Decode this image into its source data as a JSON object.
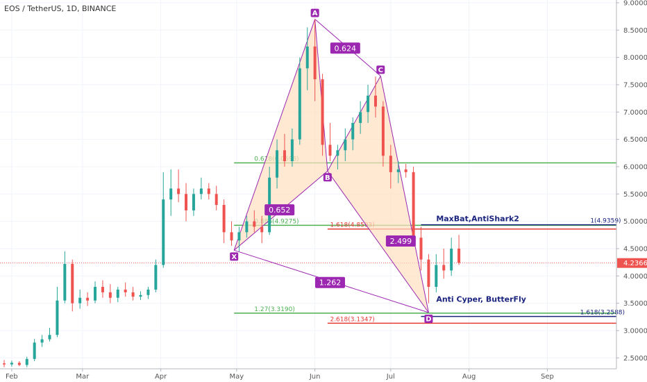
{
  "chart_data": {
    "type": "candlestick",
    "title": "EOS / TetherUS, 1D, BINANCE",
    "ylim": [
      2.3,
      9.0
    ],
    "xlim": [
      "2019-01-29",
      "2019-09-30"
    ],
    "x_ticks": [
      {
        "label": "Feb",
        "date": "2019-02-01"
      },
      {
        "label": "Mar",
        "date": "2019-03-01"
      },
      {
        "label": "Apr",
        "date": "2019-04-01"
      },
      {
        "label": "May",
        "date": "2019-05-01"
      },
      {
        "label": "Jun",
        "date": "2019-06-01"
      },
      {
        "label": "Jul",
        "date": "2019-07-01"
      },
      {
        "label": "Aug",
        "date": "2019-08-01"
      },
      {
        "label": "Sep",
        "date": "2019-09-01"
      }
    ],
    "y_ticks": [
      "2.5000",
      "3.0000",
      "3.5000",
      "4.0000",
      "4.5000",
      "5.0000",
      "5.5000",
      "6.0000",
      "6.5000",
      "7.0000",
      "7.5000",
      "8.0000",
      "8.5000",
      "9.0000"
    ],
    "last_price": {
      "label": "4.2366",
      "value": 4.2366,
      "color": "#ef5350"
    },
    "colors": {
      "up": "#26a69a",
      "down": "#ef5350",
      "pattern": "#9c27b0",
      "fill": "#ffe0c0",
      "fib_green": "#4caf50",
      "fib_red": "#e53935",
      "fib_navy": "#1a237e"
    },
    "candles": [
      {
        "d": "2019-01-29",
        "o": 2.4,
        "h": 2.46,
        "l": 2.33,
        "c": 2.38
      },
      {
        "d": "2019-02-01",
        "o": 2.38,
        "h": 2.45,
        "l": 2.34,
        "c": 2.41
      },
      {
        "d": "2019-02-04",
        "o": 2.41,
        "h": 2.44,
        "l": 2.35,
        "c": 2.37
      },
      {
        "d": "2019-02-07",
        "o": 2.37,
        "h": 2.52,
        "l": 2.33,
        "c": 2.48
      },
      {
        "d": "2019-02-10",
        "o": 2.48,
        "h": 2.85,
        "l": 2.44,
        "c": 2.78
      },
      {
        "d": "2019-02-13",
        "o": 2.78,
        "h": 2.92,
        "l": 2.7,
        "c": 2.84
      },
      {
        "d": "2019-02-16",
        "o": 2.84,
        "h": 3.05,
        "l": 2.8,
        "c": 2.92
      },
      {
        "d": "2019-02-19",
        "o": 2.92,
        "h": 3.8,
        "l": 2.88,
        "c": 3.55
      },
      {
        "d": "2019-02-22",
        "o": 3.55,
        "h": 4.45,
        "l": 3.5,
        "c": 4.22
      },
      {
        "d": "2019-02-25",
        "o": 4.22,
        "h": 4.3,
        "l": 3.35,
        "c": 3.5
      },
      {
        "d": "2019-02-28",
        "o": 3.5,
        "h": 3.75,
        "l": 3.4,
        "c": 3.6
      },
      {
        "d": "2019-03-03",
        "o": 3.6,
        "h": 3.7,
        "l": 3.45,
        "c": 3.55
      },
      {
        "d": "2019-03-06",
        "o": 3.55,
        "h": 3.9,
        "l": 3.5,
        "c": 3.8
      },
      {
        "d": "2019-03-09",
        "o": 3.8,
        "h": 3.92,
        "l": 3.6,
        "c": 3.7
      },
      {
        "d": "2019-03-12",
        "o": 3.7,
        "h": 3.85,
        "l": 3.5,
        "c": 3.6
      },
      {
        "d": "2019-03-15",
        "o": 3.6,
        "h": 3.8,
        "l": 3.52,
        "c": 3.75
      },
      {
        "d": "2019-03-18",
        "o": 3.75,
        "h": 3.88,
        "l": 3.62,
        "c": 3.7
      },
      {
        "d": "2019-03-21",
        "o": 3.7,
        "h": 3.8,
        "l": 3.55,
        "c": 3.62
      },
      {
        "d": "2019-03-24",
        "o": 3.62,
        "h": 3.72,
        "l": 3.56,
        "c": 3.65
      },
      {
        "d": "2019-03-27",
        "o": 3.65,
        "h": 3.8,
        "l": 3.58,
        "c": 3.75
      },
      {
        "d": "2019-03-30",
        "o": 3.75,
        "h": 4.3,
        "l": 3.7,
        "c": 4.2
      },
      {
        "d": "2019-04-02",
        "o": 4.2,
        "h": 5.9,
        "l": 4.15,
        "c": 5.4
      },
      {
        "d": "2019-04-05",
        "o": 5.4,
        "h": 5.95,
        "l": 5.1,
        "c": 5.6
      },
      {
        "d": "2019-04-08",
        "o": 5.6,
        "h": 5.95,
        "l": 5.35,
        "c": 5.5
      },
      {
        "d": "2019-04-11",
        "o": 5.5,
        "h": 5.7,
        "l": 5.0,
        "c": 5.2
      },
      {
        "d": "2019-04-14",
        "o": 5.2,
        "h": 5.6,
        "l": 5.1,
        "c": 5.5
      },
      {
        "d": "2019-04-17",
        "o": 5.5,
        "h": 5.8,
        "l": 5.4,
        "c": 5.6
      },
      {
        "d": "2019-04-20",
        "o": 5.6,
        "h": 5.7,
        "l": 5.4,
        "c": 5.5
      },
      {
        "d": "2019-04-23",
        "o": 5.5,
        "h": 5.65,
        "l": 5.2,
        "c": 5.3
      },
      {
        "d": "2019-04-26",
        "o": 5.3,
        "h": 5.4,
        "l": 4.6,
        "c": 4.8
      },
      {
        "d": "2019-04-29",
        "o": 4.8,
        "h": 5.0,
        "l": 4.55,
        "c": 4.65
      },
      {
        "d": "2019-05-02",
        "o": 4.65,
        "h": 4.9,
        "l": 4.45,
        "c": 4.8
      },
      {
        "d": "2019-05-05",
        "o": 4.8,
        "h": 5.1,
        "l": 4.7,
        "c": 5.0
      },
      {
        "d": "2019-05-08",
        "o": 5.0,
        "h": 5.2,
        "l": 4.8,
        "c": 4.9
      },
      {
        "d": "2019-05-11",
        "o": 4.9,
        "h": 5.1,
        "l": 4.6,
        "c": 4.8
      },
      {
        "d": "2019-05-14",
        "o": 4.8,
        "h": 6.0,
        "l": 4.75,
        "c": 5.8
      },
      {
        "d": "2019-05-17",
        "o": 5.8,
        "h": 6.5,
        "l": 5.6,
        "c": 6.3
      },
      {
        "d": "2019-05-20",
        "o": 6.3,
        "h": 6.6,
        "l": 6.0,
        "c": 6.1
      },
      {
        "d": "2019-05-23",
        "o": 6.1,
        "h": 6.7,
        "l": 6.0,
        "c": 6.5
      },
      {
        "d": "2019-05-26",
        "o": 6.5,
        "h": 8.0,
        "l": 6.4,
        "c": 7.8
      },
      {
        "d": "2019-05-29",
        "o": 7.8,
        "h": 8.55,
        "l": 7.4,
        "c": 8.2
      },
      {
        "d": "2019-06-01",
        "o": 8.2,
        "h": 8.7,
        "l": 7.2,
        "c": 7.6
      },
      {
        "d": "2019-06-04",
        "o": 7.6,
        "h": 7.7,
        "l": 6.2,
        "c": 6.4
      },
      {
        "d": "2019-06-07",
        "o": 6.4,
        "h": 6.8,
        "l": 6.1,
        "c": 6.2
      },
      {
        "d": "2019-06-10",
        "o": 6.2,
        "h": 6.4,
        "l": 5.95,
        "c": 6.3
      },
      {
        "d": "2019-06-13",
        "o": 6.3,
        "h": 6.7,
        "l": 6.1,
        "c": 6.5
      },
      {
        "d": "2019-06-16",
        "o": 6.5,
        "h": 6.9,
        "l": 6.3,
        "c": 6.8
      },
      {
        "d": "2019-06-19",
        "o": 6.8,
        "h": 7.2,
        "l": 6.6,
        "c": 7.0
      },
      {
        "d": "2019-06-22",
        "o": 7.0,
        "h": 7.5,
        "l": 6.8,
        "c": 7.3
      },
      {
        "d": "2019-06-25",
        "o": 7.3,
        "h": 7.65,
        "l": 6.9,
        "c": 7.1
      },
      {
        "d": "2019-06-28",
        "o": 7.1,
        "h": 7.2,
        "l": 6.0,
        "c": 6.2
      },
      {
        "d": "2019-07-01",
        "o": 6.2,
        "h": 6.4,
        "l": 5.6,
        "c": 5.9
      },
      {
        "d": "2019-07-04",
        "o": 5.9,
        "h": 6.1,
        "l": 5.7,
        "c": 5.95
      },
      {
        "d": "2019-07-07",
        "o": 5.95,
        "h": 6.05,
        "l": 5.8,
        "c": 5.9
      },
      {
        "d": "2019-07-10",
        "o": 5.9,
        "h": 6.0,
        "l": 4.6,
        "c": 4.7
      },
      {
        "d": "2019-07-13",
        "o": 4.7,
        "h": 4.9,
        "l": 4.1,
        "c": 4.3
      },
      {
        "d": "2019-07-16",
        "o": 4.3,
        "h": 4.4,
        "l": 3.5,
        "c": 3.8
      },
      {
        "d": "2019-07-19",
        "o": 3.8,
        "h": 4.4,
        "l": 3.7,
        "c": 4.2
      },
      {
        "d": "2019-07-22",
        "o": 4.2,
        "h": 4.5,
        "l": 3.95,
        "c": 4.1
      },
      {
        "d": "2019-07-25",
        "o": 4.1,
        "h": 4.7,
        "l": 4.0,
        "c": 4.5
      },
      {
        "d": "2019-07-28",
        "o": 4.5,
        "h": 4.75,
        "l": 4.2,
        "c": 4.24
      }
    ],
    "harmonic_points": [
      {
        "label": "X",
        "d": "2019-04-30",
        "v": 4.47
      },
      {
        "label": "A",
        "d": "2019-06-01",
        "v": 8.7
      },
      {
        "label": "B",
        "d": "2019-06-06",
        "v": 5.92
      },
      {
        "label": "C",
        "d": "2019-06-27",
        "v": 7.66
      },
      {
        "label": "D",
        "d": "2019-07-16",
        "v": 3.33
      }
    ],
    "ratios": [
      {
        "label": "0.624",
        "d": "2019-06-13",
        "v": 8.17
      },
      {
        "label": "0.652",
        "d": "2019-05-18",
        "v": 5.21
      },
      {
        "label": "2.499",
        "d": "2019-07-05",
        "v": 4.64
      },
      {
        "label": "1.262",
        "d": "2019-06-07",
        "v": 3.88
      }
    ],
    "fib_levels": [
      {
        "label": "0.618(6.0698)",
        "v": 6.0698,
        "d1": "2019-04-30",
        "d2": "2019-09-30",
        "color": "#4caf50",
        "label_d": "2019-05-08"
      },
      {
        "label": "0.886(4.9275)",
        "v": 4.9275,
        "d1": "2019-04-30",
        "d2": "2019-09-30",
        "color": "#4caf50",
        "label_d": "2019-05-08"
      },
      {
        "label": "1.618(4.8593)",
        "v": 4.8593,
        "d1": "2019-06-06",
        "d2": "2019-09-30",
        "color": "#e53935",
        "label_d": "2019-06-07"
      },
      {
        "label": "1(4.9359)",
        "v": 4.9359,
        "d1": "2019-07-13",
        "d2": "2019-09-30",
        "color": "#1a237e",
        "label_d": "2019-09-18"
      },
      {
        "label": "1.27(3.3190)",
        "v": 3.319,
        "d1": "2019-04-30",
        "d2": "2019-09-30",
        "color": "#4caf50",
        "label_d": "2019-05-08"
      },
      {
        "label": "1.618(3.2588)",
        "v": 3.2588,
        "d1": "2019-07-13",
        "d2": "2019-09-30",
        "color": "#1a237e",
        "label_d": "2019-09-14"
      },
      {
        "label": "2.618(3.1347)",
        "v": 3.1347,
        "d1": "2019-06-06",
        "d2": "2019-09-30",
        "color": "#e53935",
        "label_d": "2019-06-07"
      }
    ],
    "annotations": [
      {
        "text": "MaxBat,AntiShark2",
        "d": "2019-07-19",
        "v": 5.0
      },
      {
        "text": "Anti Cyper, ButterFly",
        "d": "2019-07-19",
        "v": 3.53
      }
    ]
  }
}
